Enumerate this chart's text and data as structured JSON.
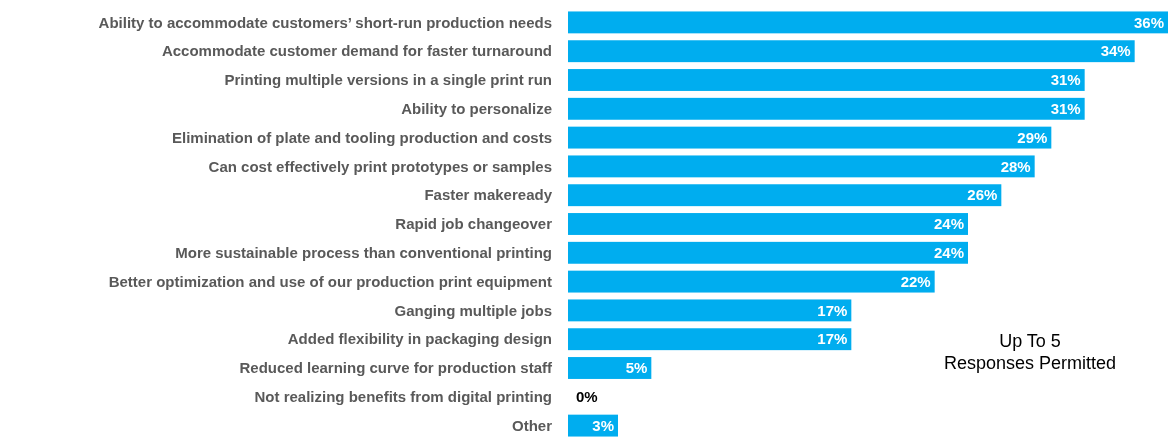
{
  "chart_data": {
    "type": "bar",
    "orientation": "horizontal",
    "categories": [
      "Ability to accommodate customers’ short-run production needs",
      "Accommodate customer demand for faster turnaround",
      "Printing multiple versions in a single print run",
      "Ability to personalize",
      "Elimination of plate and tooling production and costs",
      "Can cost effectively print prototypes or samples",
      "Faster makeready",
      "Rapid job changeover",
      "More sustainable process than conventional printing",
      "Better optimization and use of our production print equipment",
      "Ganging multiple jobs",
      "Added flexibility in packaging design",
      "Reduced learning curve for production staff",
      "Not realizing benefits from digital printing",
      "Other"
    ],
    "values": [
      36,
      34,
      31,
      31,
      29,
      28,
      26,
      24,
      24,
      22,
      17,
      17,
      5,
      0,
      3
    ],
    "value_labels": [
      "36%",
      "34%",
      "31%",
      "31%",
      "29%",
      "28%",
      "26%",
      "24%",
      "24%",
      "22%",
      "17%",
      "17%",
      "5%",
      "0%",
      "3%"
    ],
    "color": "#00adef",
    "annotations": [
      "Up To 5 Responses Permitted"
    ]
  }
}
